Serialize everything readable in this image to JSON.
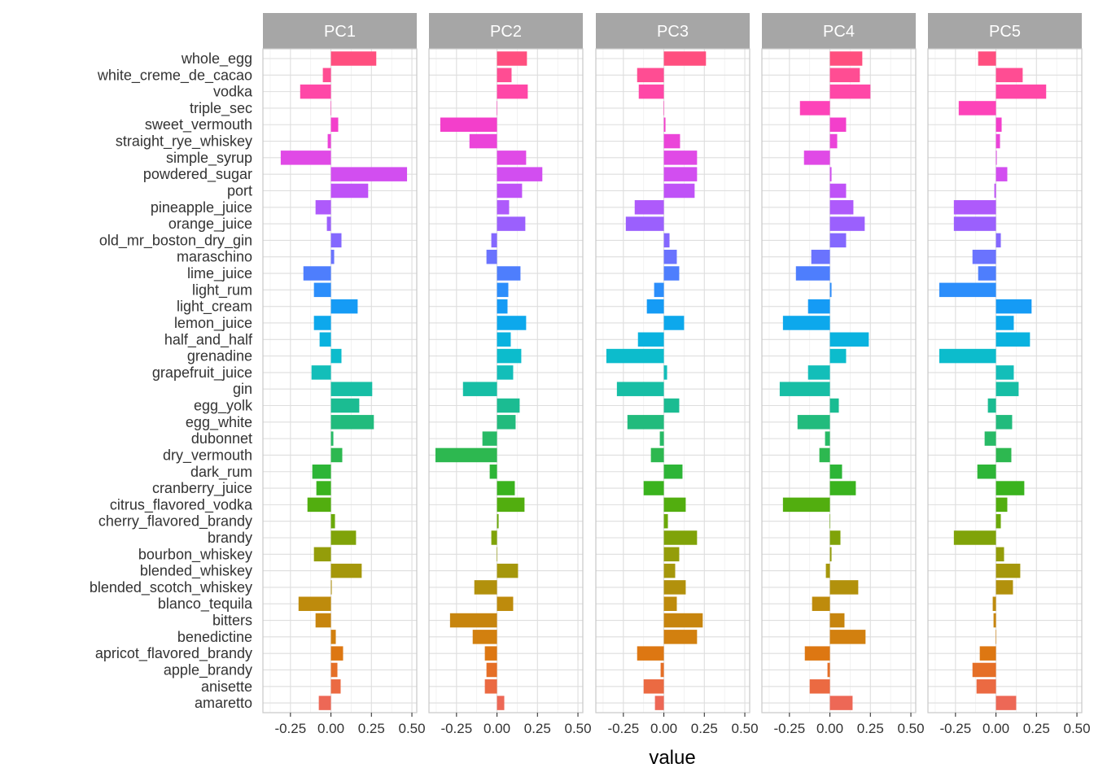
{
  "chart_data": {
    "type": "bar",
    "orientation": "horizontal",
    "xlabel": "value",
    "ylabel": "",
    "xlim": [
      -0.42,
      0.53
    ],
    "x_ticks": [
      -0.25,
      0.0,
      0.25,
      0.5
    ],
    "x_tick_labels": [
      "-0.25",
      "0.00",
      "0.25",
      "0.50"
    ],
    "grid": true,
    "legend": "none",
    "categories": [
      "whole_egg",
      "white_creme_de_cacao",
      "vodka",
      "triple_sec",
      "sweet_vermouth",
      "straight_rye_whiskey",
      "simple_syrup",
      "powdered_sugar",
      "port",
      "pineapple_juice",
      "orange_juice",
      "old_mr_boston_dry_gin",
      "maraschino",
      "lime_juice",
      "light_rum",
      "light_cream",
      "lemon_juice",
      "half_and_half",
      "grenadine",
      "grapefruit_juice",
      "gin",
      "egg_yolk",
      "egg_white",
      "dubonnet",
      "dry_vermouth",
      "dark_rum",
      "cranberry_juice",
      "citrus_flavored_vodka",
      "cherry_flavored_brandy",
      "brandy",
      "bourbon_whiskey",
      "blended_whiskey",
      "blended_scotch_whiskey",
      "blanco_tequila",
      "bitters",
      "benedictine",
      "apricot_flavored_brandy",
      "apple_brandy",
      "anisette",
      "amaretto"
    ],
    "colors": [
      "#FF4F7F",
      "#FF4D93",
      "#FF47A7",
      "#FD43B9",
      "#F33FCB",
      "#EB44D9",
      "#E04AE6",
      "#D24EF0",
      "#BF52F7",
      "#AE5AFB",
      "#9B60FD",
      "#8468FE",
      "#6A73FE",
      "#4E7EFD",
      "#2C8EFB",
      "#159BF5",
      "#0DA8EC",
      "#0AB2DF",
      "#0CBCCC",
      "#13BEB9",
      "#17BEA5",
      "#1BBC92",
      "#22BB7D",
      "#28BA66",
      "#2DB850",
      "#2DB537",
      "#3AB31E",
      "#52AE0F",
      "#6BA90A",
      "#80A309",
      "#949D0A",
      "#A5970B",
      "#B2910C",
      "#BE8B0C",
      "#C7850E",
      "#D2800F",
      "#DD7712",
      "#E56F27",
      "#EB6A42",
      "#ED6856"
    ],
    "series": [
      {
        "name": "PC1",
        "values": [
          0.28,
          -0.05,
          -0.19,
          0.0,
          0.045,
          -0.02,
          -0.31,
          0.47,
          0.23,
          -0.095,
          -0.025,
          0.065,
          0.02,
          -0.17,
          -0.105,
          0.165,
          -0.105,
          -0.07,
          0.065,
          -0.12,
          0.255,
          0.175,
          0.265,
          0.015,
          0.07,
          -0.115,
          -0.09,
          -0.145,
          0.025,
          0.155,
          -0.105,
          0.19,
          0.005,
          -0.2,
          -0.095,
          0.03,
          0.075,
          0.04,
          0.06,
          -0.075
        ]
      },
      {
        "name": "PC2",
        "values": [
          0.185,
          0.09,
          0.19,
          0.0,
          -0.35,
          -0.17,
          0.18,
          0.28,
          0.155,
          0.075,
          0.175,
          -0.035,
          -0.065,
          0.145,
          0.07,
          0.065,
          0.18,
          0.085,
          0.15,
          0.1,
          -0.21,
          0.14,
          0.115,
          -0.09,
          -0.38,
          -0.045,
          0.11,
          0.17,
          0.01,
          -0.035,
          0.0,
          0.13,
          -0.14,
          0.1,
          -0.29,
          -0.15,
          -0.075,
          -0.065,
          -0.075,
          0.045
        ]
      },
      {
        "name": "PC3",
        "values": [
          0.26,
          -0.165,
          -0.155,
          0.0,
          0.01,
          0.1,
          0.205,
          0.205,
          0.19,
          -0.18,
          -0.235,
          0.035,
          0.08,
          0.095,
          -0.06,
          -0.105,
          0.125,
          -0.16,
          -0.355,
          0.02,
          -0.29,
          0.095,
          -0.225,
          -0.025,
          -0.08,
          0.115,
          -0.125,
          0.135,
          0.025,
          0.205,
          0.095,
          0.07,
          0.135,
          0.08,
          0.24,
          0.205,
          -0.165,
          -0.02,
          -0.125,
          -0.055
        ]
      },
      {
        "name": "PC4",
        "values": [
          0.2,
          0.185,
          0.25,
          -0.185,
          0.1,
          0.045,
          -0.16,
          0.01,
          0.1,
          0.145,
          0.215,
          0.1,
          -0.115,
          -0.21,
          0.01,
          -0.135,
          -0.29,
          0.24,
          0.1,
          -0.135,
          -0.31,
          0.055,
          -0.2,
          -0.03,
          -0.065,
          0.075,
          0.16,
          -0.29,
          0.0,
          0.065,
          0.01,
          -0.025,
          0.175,
          -0.11,
          0.09,
          0.22,
          -0.155,
          -0.015,
          -0.125,
          0.14
        ]
      },
      {
        "name": "PC5",
        "values": [
          -0.11,
          0.165,
          0.31,
          -0.23,
          0.035,
          0.025,
          0.005,
          0.07,
          -0.01,
          -0.26,
          -0.26,
          0.03,
          -0.145,
          -0.11,
          -0.35,
          0.22,
          0.11,
          0.21,
          -0.35,
          0.11,
          0.14,
          -0.05,
          0.1,
          -0.07,
          0.095,
          -0.115,
          0.175,
          0.07,
          0.03,
          -0.26,
          0.05,
          0.15,
          0.105,
          -0.02,
          -0.015,
          0.0,
          -0.1,
          -0.145,
          -0.12,
          0.125
        ]
      }
    ]
  }
}
